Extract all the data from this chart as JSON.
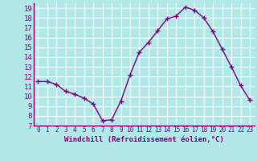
{
  "x": [
    0,
    1,
    2,
    3,
    4,
    5,
    6,
    7,
    8,
    9,
    10,
    11,
    12,
    13,
    14,
    15,
    16,
    17,
    18,
    19,
    20,
    21,
    22,
    23
  ],
  "y": [
    11.5,
    11.5,
    11.2,
    10.5,
    10.2,
    9.8,
    9.2,
    7.5,
    7.6,
    9.5,
    12.2,
    14.5,
    15.5,
    16.7,
    17.9,
    18.2,
    19.1,
    18.8,
    18.0,
    16.6,
    14.8,
    13.0,
    11.1,
    9.6
  ],
  "line_color": "#800080",
  "marker": "+",
  "bg_color": "#b2e8e8",
  "grid_color": "#ffffff",
  "xlabel": "Windchill (Refroidissement éolien,°C)",
  "xlabel_color": "#800080",
  "tick_color": "#800080",
  "spine_color": "#800080",
  "ylim": [
    7,
    19.5
  ],
  "yticks": [
    7,
    8,
    9,
    10,
    11,
    12,
    13,
    14,
    15,
    16,
    17,
    18,
    19
  ],
  "xticks": [
    0,
    1,
    2,
    3,
    4,
    5,
    6,
    7,
    8,
    9,
    10,
    11,
    12,
    13,
    14,
    15,
    16,
    17,
    18,
    19,
    20,
    21,
    22,
    23
  ],
  "xlim": [
    -0.5,
    23.5
  ]
}
